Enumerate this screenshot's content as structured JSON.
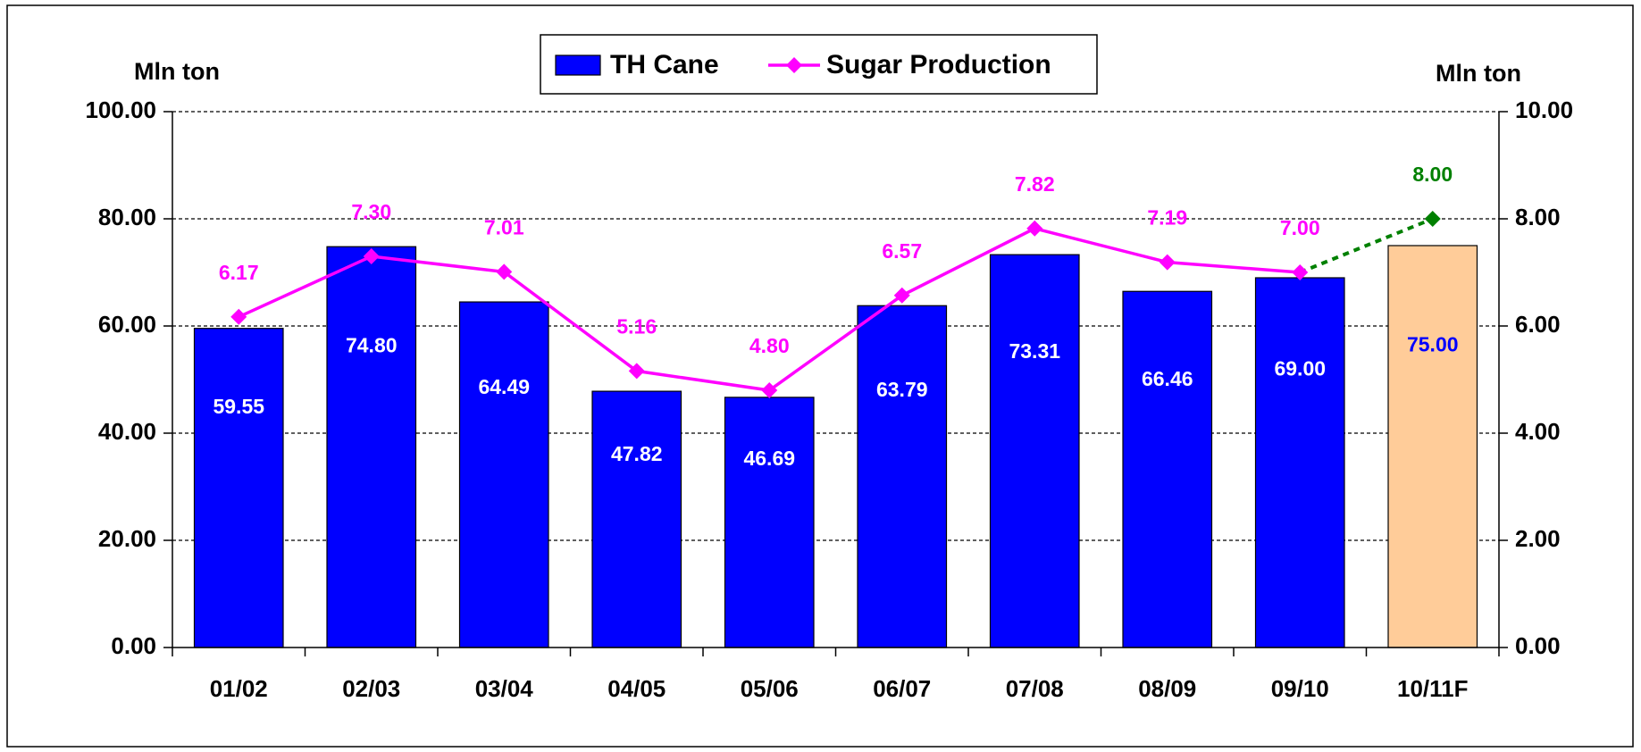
{
  "chart_data": {
    "type": "bar_line",
    "categories": [
      "01/02",
      "02/03",
      "03/04",
      "04/05",
      "05/06",
      "06/07",
      "07/08",
      "08/09",
      "09/10",
      "10/11F"
    ],
    "series": [
      {
        "name": "TH Cane",
        "color": "#0000ff",
        "colors": [
          "#0000ff",
          "#0000ff",
          "#0000ff",
          "#0000ff",
          "#0000ff",
          "#0000ff",
          "#0000ff",
          "#0000ff",
          "#0000ff",
          "#ffcc99"
        ],
        "label_colors": [
          "#ffffff",
          "#ffffff",
          "#ffffff",
          "#ffffff",
          "#ffffff",
          "#ffffff",
          "#ffffff",
          "#ffffff",
          "#ffffff",
          "#0000ff"
        ],
        "values": [
          59.55,
          74.8,
          64.49,
          47.82,
          46.69,
          63.79,
          73.31,
          66.46,
          69.0,
          75.0
        ],
        "value_labels": [
          "59.55",
          "74.80",
          "64.49",
          "47.82",
          "46.69",
          "63.79",
          "73.31",
          "66.46",
          "69.00",
          "75.00"
        ]
      },
      {
        "name": "Sugar Production",
        "color": "#ff00ff",
        "axis": "y2",
        "colors": [
          "#ff00ff",
          "#ff00ff",
          "#ff00ff",
          "#ff00ff",
          "#ff00ff",
          "#ff00ff",
          "#ff00ff",
          "#ff00ff",
          "#ff00ff",
          "#008000"
        ],
        "values": [
          6.17,
          7.3,
          7.01,
          5.16,
          4.8,
          6.57,
          7.82,
          7.19,
          7.0,
          8.0
        ],
        "value_labels": [
          "6.17",
          "7.30",
          "7.01",
          "5.16",
          "4.80",
          "6.57",
          "7.82",
          "7.19",
          "7.00",
          "8.00"
        ]
      }
    ],
    "y_label": "Mln ton",
    "y2_label": "Mln ton",
    "ylim": [
      0,
      100
    ],
    "yticks": [
      {
        "value": 0,
        "label": "0.00"
      },
      {
        "value": 20,
        "label": "20.00"
      },
      {
        "value": 40,
        "label": "40.00"
      },
      {
        "value": 60,
        "label": "60.00"
      },
      {
        "value": 80,
        "label": "80.00"
      },
      {
        "value": 100,
        "label": "100.00"
      }
    ],
    "y2lim": [
      0,
      10
    ],
    "y2ticks": [
      {
        "value": 0,
        "label": "0.00"
      },
      {
        "value": 2,
        "label": "2.00"
      },
      {
        "value": 4,
        "label": "4.00"
      },
      {
        "value": 6,
        "label": "6.00"
      },
      {
        "value": 8,
        "label": "8.00"
      },
      {
        "value": 10,
        "label": "10.00"
      }
    ],
    "grid": true,
    "legend": "top"
  }
}
